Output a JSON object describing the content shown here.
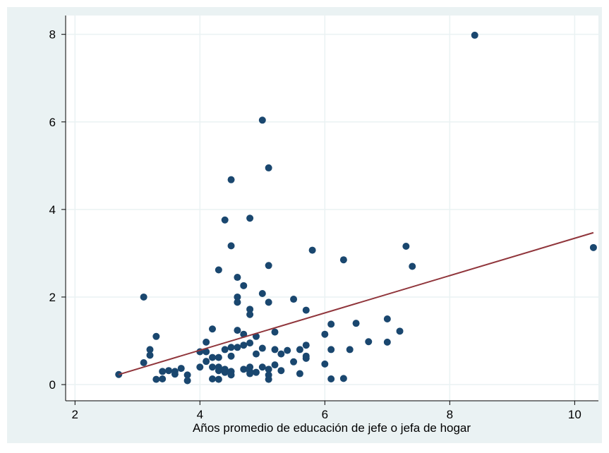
{
  "chart_data": {
    "type": "scatter",
    "xlabel": "Años promedio de educación de jefe o jefa de hogar",
    "xlim": [
      1.85,
      10.38
    ],
    "ylim": [
      -0.37,
      8.43
    ],
    "xticks": [
      2,
      4,
      6,
      8,
      10
    ],
    "yticks": [
      0,
      2,
      4,
      6,
      8
    ],
    "grid": true,
    "series": [
      {
        "mode": "markers",
        "color": "#1a476f",
        "x": [
          2.7,
          3.1,
          3.1,
          3.2,
          3.2,
          3.3,
          3.3,
          3.4,
          3.4,
          3.5,
          3.6,
          3.6,
          3.7,
          3.8,
          3.8,
          4.0,
          4.0,
          4.1,
          4.1,
          4.1,
          4.2,
          4.2,
          4.2,
          4.2,
          4.3,
          4.3,
          4.3,
          4.3,
          4.3,
          4.4,
          4.4,
          4.4,
          4.4,
          4.5,
          4.5,
          4.5,
          4.5,
          4.5,
          4.5,
          4.6,
          4.6,
          4.6,
          4.6,
          4.6,
          4.7,
          4.7,
          4.7,
          4.7,
          4.8,
          4.8,
          4.8,
          4.8,
          4.8,
          4.8,
          4.8,
          4.9,
          4.9,
          4.9,
          5.0,
          5.0,
          5.0,
          5.0,
          5.1,
          5.1,
          5.1,
          5.1,
          5.1,
          5.1,
          5.2,
          5.2,
          5.2,
          5.3,
          5.3,
          5.4,
          5.5,
          5.5,
          5.6,
          5.6,
          5.7,
          5.7,
          5.7,
          5.7,
          5.8,
          6.0,
          6.0,
          6.1,
          6.1,
          6.1,
          6.3,
          6.3,
          6.4,
          6.5,
          6.7,
          7.0,
          7.0,
          7.2,
          7.3,
          7.4,
          8.4,
          10.3
        ],
        "values": [
          0.23,
          2.0,
          0.5,
          0.8,
          0.67,
          1.1,
          0.12,
          0.3,
          0.13,
          0.32,
          0.3,
          0.24,
          0.37,
          0.22,
          0.09,
          0.75,
          0.4,
          0.97,
          0.75,
          0.53,
          1.27,
          0.62,
          0.4,
          0.13,
          2.62,
          0.62,
          0.4,
          0.32,
          0.12,
          3.76,
          0.8,
          0.35,
          0.28,
          4.68,
          3.17,
          0.85,
          0.65,
          0.3,
          0.22,
          2.45,
          2.0,
          1.88,
          1.24,
          0.85,
          2.26,
          1.15,
          0.9,
          0.35,
          3.8,
          1.72,
          1.6,
          0.95,
          0.4,
          0.3,
          0.25,
          1.1,
          0.7,
          0.28,
          6.04,
          2.08,
          0.83,
          0.4,
          4.95,
          2.72,
          1.88,
          0.35,
          0.22,
          0.12,
          1.2,
          0.8,
          0.45,
          0.7,
          0.32,
          0.78,
          1.95,
          0.52,
          0.8,
          0.25,
          1.7,
          0.9,
          0.65,
          0.6,
          3.07,
          1.15,
          0.47,
          1.38,
          0.8,
          0.13,
          2.85,
          0.14,
          0.8,
          1.4,
          0.98,
          1.5,
          0.97,
          1.22,
          3.16,
          2.7,
          7.98,
          3.13
        ]
      },
      {
        "mode": "line",
        "color": "#90353b",
        "x": [
          2.7,
          10.3
        ],
        "values": [
          0.23,
          3.47
        ]
      }
    ]
  }
}
